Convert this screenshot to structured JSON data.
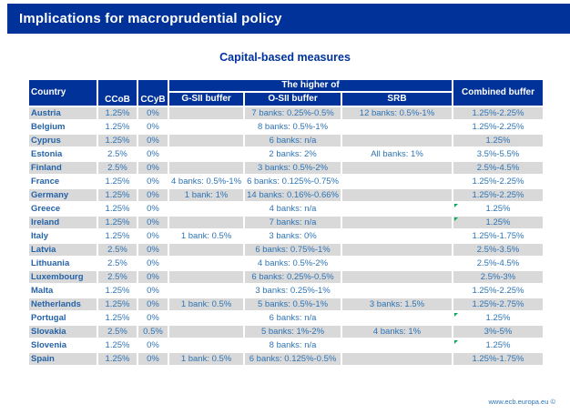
{
  "slide": {
    "title": "Implications for macroprudential policy",
    "subtitle": "Capital-based measures",
    "footer": "www.ecb.europa.eu ©"
  },
  "colors": {
    "header_blue": "#003299",
    "text_blue": "#2e74b5",
    "stripe_gray": "#d9d9d9",
    "comment_green": "#00b050"
  },
  "table": {
    "headers": {
      "country": "Country",
      "ccob": "CCoB",
      "ccyb": "CCyB",
      "higher_of": "The higher of",
      "gsii": "G-SII buffer",
      "osii": "O-SII buffer",
      "srb": "SRB",
      "combined": "Combined buffer"
    },
    "rows": [
      {
        "country": "Austria",
        "ccob": "1.25%",
        "ccyb": "0%",
        "gsii": "",
        "osii": "7 banks: 0.25%-0.5%",
        "srb": "12 banks: 0.5%-1%",
        "combined": "1.25%-2.25%",
        "comment_marker": false
      },
      {
        "country": "Belgium",
        "ccob": "1.25%",
        "ccyb": "0%",
        "gsii": "",
        "osii": "8 banks: 0.5%-1%",
        "srb": "",
        "combined": "1.25%-2.25%",
        "comment_marker": false
      },
      {
        "country": "Cyprus",
        "ccob": "1.25%",
        "ccyb": "0%",
        "gsii": "",
        "osii": "6 banks: n/a",
        "srb": "",
        "combined": "1.25%",
        "comment_marker": false
      },
      {
        "country": "Estonia",
        "ccob": "2.5%",
        "ccyb": "0%",
        "gsii": "",
        "osii": "2 banks: 2%",
        "srb": "All banks: 1%",
        "combined": "3.5%-5.5%",
        "comment_marker": false
      },
      {
        "country": "Finland",
        "ccob": "2.5%",
        "ccyb": "0%",
        "gsii": "",
        "osii": "3 banks: 0.5%-2%",
        "srb": "",
        "combined": "2.5%-4.5%",
        "comment_marker": false
      },
      {
        "country": "France",
        "ccob": "1.25%",
        "ccyb": "0%",
        "gsii": "4 banks: 0.5%-1%",
        "osii": "6 banks: 0.125%-0.75%",
        "srb": "",
        "combined": "1.25%-2.25%",
        "comment_marker": false
      },
      {
        "country": "Germany",
        "ccob": "1.25%",
        "ccyb": "0%",
        "gsii": "1 bank: 1%",
        "osii": "14 banks: 0.16%-0.66%",
        "srb": "",
        "combined": "1.25%-2.25%",
        "comment_marker": false
      },
      {
        "country": "Greece",
        "ccob": "1.25%",
        "ccyb": "0%",
        "gsii": "",
        "osii": "4 banks: n/a",
        "srb": "",
        "combined": "1.25%",
        "comment_marker": true
      },
      {
        "country": "Ireland",
        "ccob": "1.25%",
        "ccyb": "0%",
        "gsii": "",
        "osii": "7 banks: n/a",
        "srb": "",
        "combined": "1.25%",
        "comment_marker": true
      },
      {
        "country": "Italy",
        "ccob": "1.25%",
        "ccyb": "0%",
        "gsii": "1 bank: 0.5%",
        "osii": "3 banks: 0%",
        "srb": "",
        "combined": "1.25%-1.75%",
        "comment_marker": false
      },
      {
        "country": "Latvia",
        "ccob": "2.5%",
        "ccyb": "0%",
        "gsii": "",
        "osii": "6 banks: 0.75%-1%",
        "srb": "",
        "combined": "2.5%-3.5%",
        "comment_marker": false
      },
      {
        "country": "Lithuania",
        "ccob": "2.5%",
        "ccyb": "0%",
        "gsii": "",
        "osii": "4 banks: 0.5%-2%",
        "srb": "",
        "combined": "2.5%-4.5%",
        "comment_marker": false
      },
      {
        "country": "Luxembourg",
        "ccob": "2.5%",
        "ccyb": "0%",
        "gsii": "",
        "osii": "6 banks: 0.25%-0.5%",
        "srb": "",
        "combined": "2.5%-3%",
        "comment_marker": false
      },
      {
        "country": "Malta",
        "ccob": "1.25%",
        "ccyb": "0%",
        "gsii": "",
        "osii": "3 banks: 0.25%-1%",
        "srb": "",
        "combined": "1.25%-2.25%",
        "comment_marker": false
      },
      {
        "country": "Netherlands",
        "ccob": "1.25%",
        "ccyb": "0%",
        "gsii": "1 bank: 0.5%",
        "osii": "5 banks: 0.5%-1%",
        "srb": "3 banks: 1.5%",
        "combined": "1.25%-2.75%",
        "comment_marker": false
      },
      {
        "country": "Portugal",
        "ccob": "1.25%",
        "ccyb": "0%",
        "gsii": "",
        "osii": "6 banks: n/a",
        "srb": "",
        "combined": "1.25%",
        "comment_marker": true
      },
      {
        "country": "Slovakia",
        "ccob": "2.5%",
        "ccyb": "0.5%",
        "gsii": "",
        "osii": "5 banks: 1%-2%",
        "srb": "4 banks: 1%",
        "combined": "3%-5%",
        "comment_marker": false
      },
      {
        "country": "Slovenia",
        "ccob": "1.25%",
        "ccyb": "0%",
        "gsii": "",
        "osii": "8 banks: n/a",
        "srb": "",
        "combined": "1.25%",
        "comment_marker": true
      },
      {
        "country": "Spain",
        "ccob": "1.25%",
        "ccyb": "0%",
        "gsii": "1 bank: 0.5%",
        "osii": "6 banks: 0.125%-0.5%",
        "srb": "",
        "combined": "1.25%-1.75%",
        "comment_marker": false
      }
    ]
  }
}
